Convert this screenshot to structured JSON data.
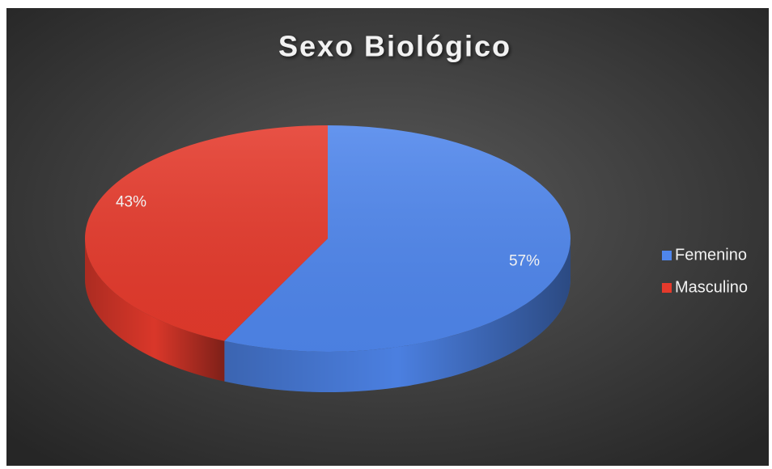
{
  "chart_data": {
    "type": "pie",
    "title": "Sexo Biológico",
    "categories": [
      "Femenino",
      "Masculino"
    ],
    "values": [
      57,
      43
    ],
    "value_labels": [
      "57%",
      "43%"
    ],
    "colors": [
      "#4f86ec",
      "#e53a2c"
    ],
    "legend": "right"
  }
}
